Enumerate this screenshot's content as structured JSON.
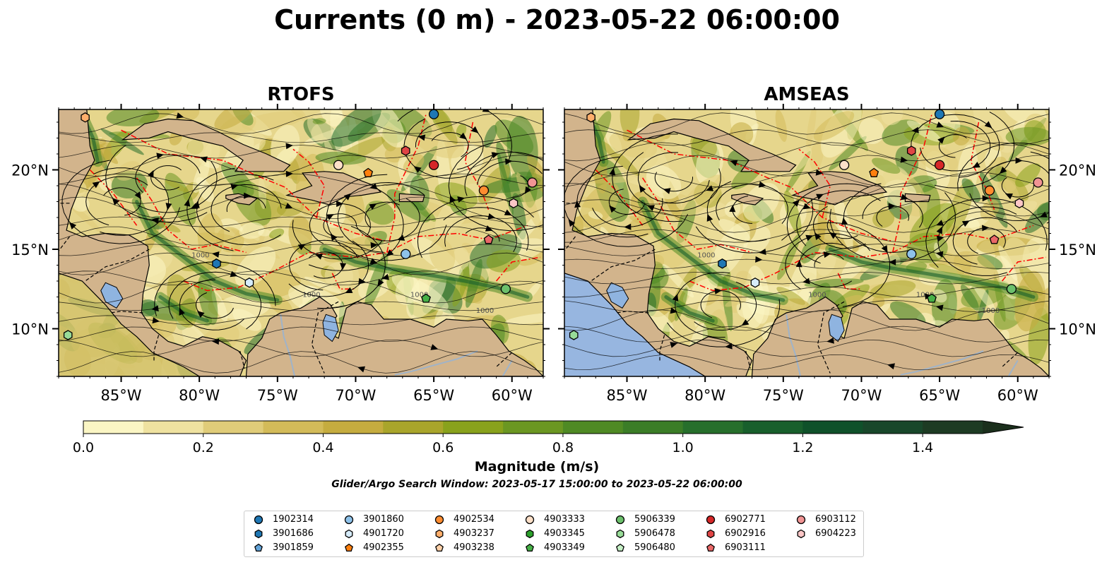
{
  "figure": {
    "title": "Currents (0 m) - 2023-05-22 06:00:00",
    "panels": [
      {
        "id": "rtofs",
        "title": "RTOFS"
      },
      {
        "id": "amseas",
        "title": "AMSEAS"
      }
    ],
    "longitude_ticks": [
      "85°W",
      "80°W",
      "75°W",
      "70°W",
      "65°W",
      "60°W"
    ],
    "latitude_ticks": [
      "20°N",
      "15°N",
      "10°N"
    ],
    "contour_label": "1000",
    "colorbar": {
      "label": "Magnitude (m/s)",
      "ticks": [
        "0.0",
        "0.2",
        "0.4",
        "0.6",
        "0.8",
        "1.0",
        "1.2",
        "1.4"
      ],
      "colors": [
        "#fbf6c4",
        "#efe2a0",
        "#e0cc79",
        "#d3bb59",
        "#c5ac3f",
        "#a9a52b",
        "#89a21c",
        "#6b9722",
        "#4f8a24",
        "#3b7d27",
        "#276f2c",
        "#185f2c",
        "#0f512a",
        "#18472a",
        "#1d3b23",
        "#1b2f1c"
      ]
    },
    "search_window": "Glider/Argo Search Window: 2023-05-17 15:00:00 to 2023-05-22 06:00:00",
    "map_colors": {
      "land": "#d2b48c",
      "lake": "#8fb4e0",
      "ocean_outside": "#97b6e0",
      "river": "#9fb3c9",
      "eez_line": "#ff0000"
    }
  },
  "legend": {
    "items": [
      {
        "id": "1902314",
        "color": "#1f77b4",
        "marker": "circle"
      },
      {
        "id": "3901686",
        "color": "#1f77b4",
        "marker": "hexagon"
      },
      {
        "id": "3901859",
        "color": "#63a3d8",
        "marker": "pentagon"
      },
      {
        "id": "3901860",
        "color": "#8ec2ea",
        "marker": "circle"
      },
      {
        "id": "4901720",
        "color": "#d6ecfb",
        "marker": "hexagon"
      },
      {
        "id": "4902355",
        "color": "#ff7f0e",
        "marker": "pentagon"
      },
      {
        "id": "4902534",
        "color": "#ff8c30",
        "marker": "circle"
      },
      {
        "id": "4903237",
        "color": "#ffae6b",
        "marker": "hexagon"
      },
      {
        "id": "4903238",
        "color": "#ffd0a8",
        "marker": "pentagon"
      },
      {
        "id": "4903333",
        "color": "#fde0c8",
        "marker": "circle"
      },
      {
        "id": "4903345",
        "color": "#2ca02c",
        "marker": "hexagon"
      },
      {
        "id": "4903349",
        "color": "#47b047",
        "marker": "pentagon"
      },
      {
        "id": "5906339",
        "color": "#6cc06c",
        "marker": "circle"
      },
      {
        "id": "5906478",
        "color": "#98dc98",
        "marker": "hexagon"
      },
      {
        "id": "5906480",
        "color": "#c6f0c6",
        "marker": "pentagon"
      },
      {
        "id": "6902771",
        "color": "#d62728",
        "marker": "circle"
      },
      {
        "id": "6902916",
        "color": "#e04545",
        "marker": "hexagon"
      },
      {
        "id": "6903111",
        "color": "#ea6868",
        "marker": "pentagon"
      },
      {
        "id": "6903112",
        "color": "#f19494",
        "marker": "circle"
      },
      {
        "id": "6904223",
        "color": "#fbc6c6",
        "marker": "hexagon"
      }
    ]
  },
  "markers": [
    {
      "id": "1902314",
      "lon": -65.0,
      "lat": 23.5
    },
    {
      "id": "3901686",
      "lon": -78.9,
      "lat": 14.1
    },
    {
      "id": "3901860",
      "lon": -66.8,
      "lat": 14.7
    },
    {
      "id": "4901720",
      "lon": -76.8,
      "lat": 12.9
    },
    {
      "id": "4902355",
      "lon": -69.2,
      "lat": 19.8
    },
    {
      "id": "4902534",
      "lon": -61.8,
      "lat": 18.7
    },
    {
      "id": "4903237",
      "lon": -87.3,
      "lat": 23.3
    },
    {
      "id": "4903333",
      "lon": -71.1,
      "lat": 20.3
    },
    {
      "id": "5906339",
      "lon": -60.4,
      "lat": 12.5
    },
    {
      "id": "5906478",
      "lon": -88.4,
      "lat": 9.6
    },
    {
      "id": "4903349",
      "lon": -65.5,
      "lat": 11.9
    },
    {
      "id": "6902771",
      "lon": -65.0,
      "lat": 20.3
    },
    {
      "id": "6902916",
      "lon": -66.8,
      "lat": 21.2
    },
    {
      "id": "6903111",
      "lon": -61.5,
      "lat": 15.6
    },
    {
      "id": "6903112",
      "lon": -58.7,
      "lat": 19.2
    },
    {
      "id": "6904223",
      "lon": -59.9,
      "lat": 17.9
    }
  ]
}
